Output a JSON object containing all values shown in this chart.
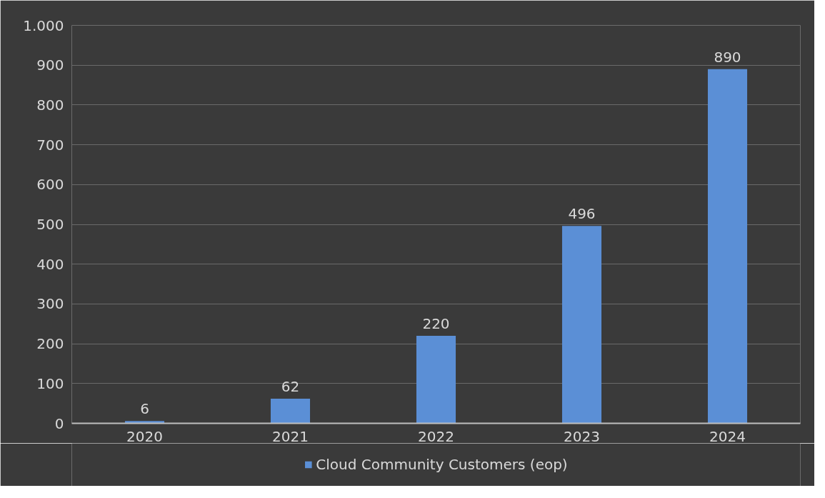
{
  "chart_data": {
    "type": "bar",
    "categories": [
      "2020",
      "2021",
      "2022",
      "2023",
      "2024"
    ],
    "series": [
      {
        "name": "Cloud Community Customers (eop)",
        "color": "#5b8fd6",
        "values": [
          6,
          62,
          220,
          496,
          890
        ]
      }
    ],
    "ylim": [
      0,
      1000
    ],
    "yticks": [
      0,
      100,
      200,
      300,
      400,
      500,
      600,
      700,
      800,
      900,
      {
        "value": 1000,
        "label": "1.000"
      }
    ],
    "grid": "y",
    "legend": "bottom",
    "data_labels": true
  }
}
